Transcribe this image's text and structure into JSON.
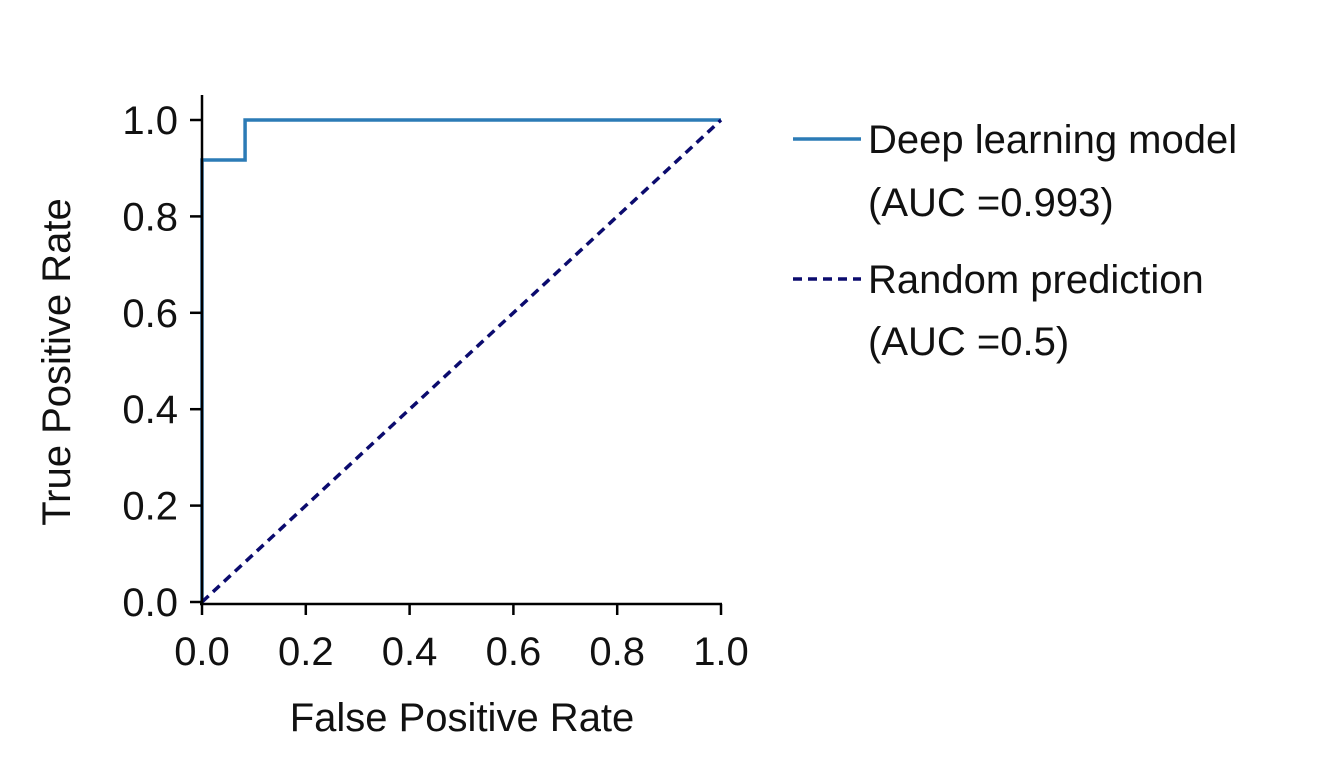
{
  "chart_data": {
    "type": "line",
    "title": "",
    "xlabel": "False Positive Rate",
    "ylabel": "True Positive Rate",
    "xlim": [
      0,
      1
    ],
    "ylim": [
      0,
      1
    ],
    "xticks": [
      "0.0",
      "0.2",
      "0.4",
      "0.6",
      "0.8",
      "1.0"
    ],
    "yticks": [
      "0.0",
      "0.2",
      "0.4",
      "0.6",
      "0.8",
      "1.0"
    ],
    "grid": false,
    "legend_position": "outside-right",
    "series": [
      {
        "name": "Deep learning model",
        "name_line2": "(AUC =0.993)",
        "color": "#2c7bb6",
        "style": "solid",
        "x": [
          0,
          0,
          0.083,
          0.083,
          1.0
        ],
        "y": [
          0,
          0.917,
          0.917,
          1.0,
          1.0
        ]
      },
      {
        "name": "Random prediction",
        "name_line2": "(AUC =0.5)",
        "color": "#0b0b6e",
        "style": "dashed",
        "x": [
          0,
          1
        ],
        "y": [
          0,
          1
        ]
      }
    ]
  }
}
